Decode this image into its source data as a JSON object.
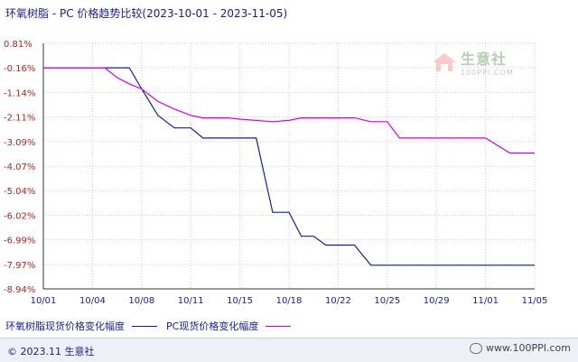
{
  "title": "环氧树脂 - PC 价格趋势比较(2023-10-01 - 2023-11-05)",
  "watermark": {
    "name": "生意社",
    "url": "100PPI.COM"
  },
  "legend": [
    {
      "label": "环氧树脂现货价格变化幅度",
      "color": "#1b1b8f"
    },
    {
      "label": "PC现货价格变化幅度",
      "color": "#d400d4"
    }
  ],
  "footer": {
    "copyright": "© 2023.11 生意社",
    "site": "www.100PPI.com"
  },
  "colors": {
    "axis_text": "#1b1b8f",
    "y_text": "#b22222",
    "grid": "#cccccc"
  },
  "chart_data": {
    "type": "line",
    "title": "环氧树脂 - PC 价格趋势比较(2023-10-01 - 2023-11-05)",
    "xlabel": "",
    "ylabel": "",
    "x_ticks": [
      "10/01",
      "10/04",
      "10/08",
      "10/11",
      "10/15",
      "10/18",
      "10/22",
      "10/25",
      "10/29",
      "11/01",
      "11/05"
    ],
    "y_ticks": [
      "0.81%",
      "-0.16%",
      "-1.14%",
      "-2.11%",
      "-3.09%",
      "-4.07%",
      "-5.04%",
      "-6.02%",
      "-6.99%",
      "-7.97%",
      "-8.94%"
    ],
    "ylim": [
      -8.94,
      0.81
    ],
    "grid": true,
    "legend_position": "bottom",
    "series": [
      {
        "name": "环氧树脂现货价格变化幅度",
        "color": "#1b1b8f",
        "points": [
          [
            "10/01",
            -0.16
          ],
          [
            "10/07",
            -0.16
          ],
          [
            "10/08",
            -1.0
          ],
          [
            "10/09",
            -2.05
          ],
          [
            "10/10",
            -2.55
          ],
          [
            "10/11",
            -2.55
          ],
          [
            "10/12",
            -2.95
          ],
          [
            "10/16",
            -2.95
          ],
          [
            "10/17",
            -5.9
          ],
          [
            "10/18",
            -5.9
          ],
          [
            "10/19",
            -6.85
          ],
          [
            "10/20",
            -6.85
          ],
          [
            "10/21",
            -7.2
          ],
          [
            "10/23",
            -7.2
          ],
          [
            "10/24",
            -8.0
          ],
          [
            "11/05",
            -8.0
          ]
        ]
      },
      {
        "name": "PC现货价格变化幅度",
        "color": "#d400d4",
        "points": [
          [
            "10/01",
            -0.16
          ],
          [
            "10/05",
            -0.16
          ],
          [
            "10/06",
            -0.55
          ],
          [
            "10/07",
            -0.8
          ],
          [
            "10/08",
            -1.0
          ],
          [
            "10/09",
            -1.5
          ],
          [
            "10/10",
            -1.8
          ],
          [
            "10/11",
            -2.05
          ],
          [
            "10/12",
            -2.15
          ],
          [
            "10/14",
            -2.15
          ],
          [
            "10/15",
            -2.2
          ],
          [
            "10/17",
            -2.3
          ],
          [
            "10/18",
            -2.25
          ],
          [
            "10/19",
            -2.15
          ],
          [
            "10/20",
            -2.15
          ],
          [
            "10/23",
            -2.15
          ],
          [
            "10/24",
            -2.3
          ],
          [
            "10/25",
            -2.3
          ],
          [
            "10/26",
            -2.95
          ],
          [
            "10/27",
            -2.95
          ],
          [
            "11/01",
            -2.95
          ],
          [
            "11/02",
            -3.25
          ],
          [
            "11/03",
            -3.55
          ],
          [
            "11/05",
            -3.55
          ]
        ]
      }
    ]
  }
}
